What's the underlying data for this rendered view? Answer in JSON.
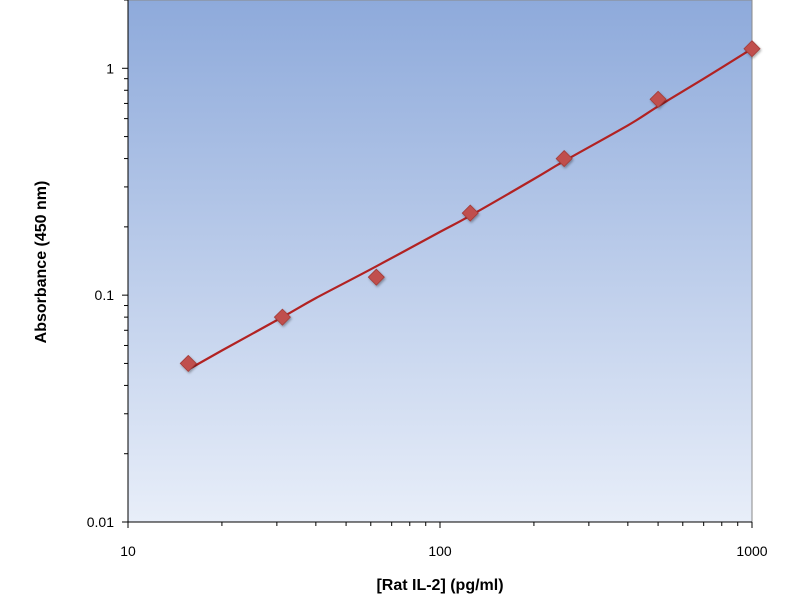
{
  "chart_data": {
    "type": "scatter",
    "title": "",
    "xlabel": "[Rat IL-2] (pg/ml)",
    "ylabel": "Absorbance (450 nm)",
    "x_scale": "log",
    "y_scale": "log",
    "xlim": [
      10,
      1000
    ],
    "ylim": [
      0.01,
      2
    ],
    "x_ticks": [
      10,
      100,
      1000
    ],
    "x_tick_labels": [
      "10",
      "100",
      "1000"
    ],
    "y_ticks": [
      0.01,
      0.1,
      1
    ],
    "y_tick_labels": [
      "0.01",
      "0.1",
      "1"
    ],
    "grid": false,
    "series": [
      {
        "marker": "diamond",
        "color": "#c0504d",
        "x": [
          15.6,
          31.25,
          62.5,
          125,
          250,
          500,
          1000
        ],
        "y": [
          0.05,
          0.08,
          0.12,
          0.23,
          0.4,
          0.73,
          1.22
        ]
      }
    ],
    "fit_curve": {
      "color": "#b22222",
      "x": [
        15.6,
        20,
        31.25,
        40,
        62.5,
        100,
        125,
        200,
        250,
        400,
        500,
        700,
        1000
      ],
      "y": [
        0.047,
        0.057,
        0.08,
        0.097,
        0.134,
        0.19,
        0.224,
        0.325,
        0.39,
        0.56,
        0.68,
        0.9,
        1.22
      ]
    },
    "plot_background": {
      "top": "#8eaadb",
      "bottom": "#e8eef9"
    }
  }
}
